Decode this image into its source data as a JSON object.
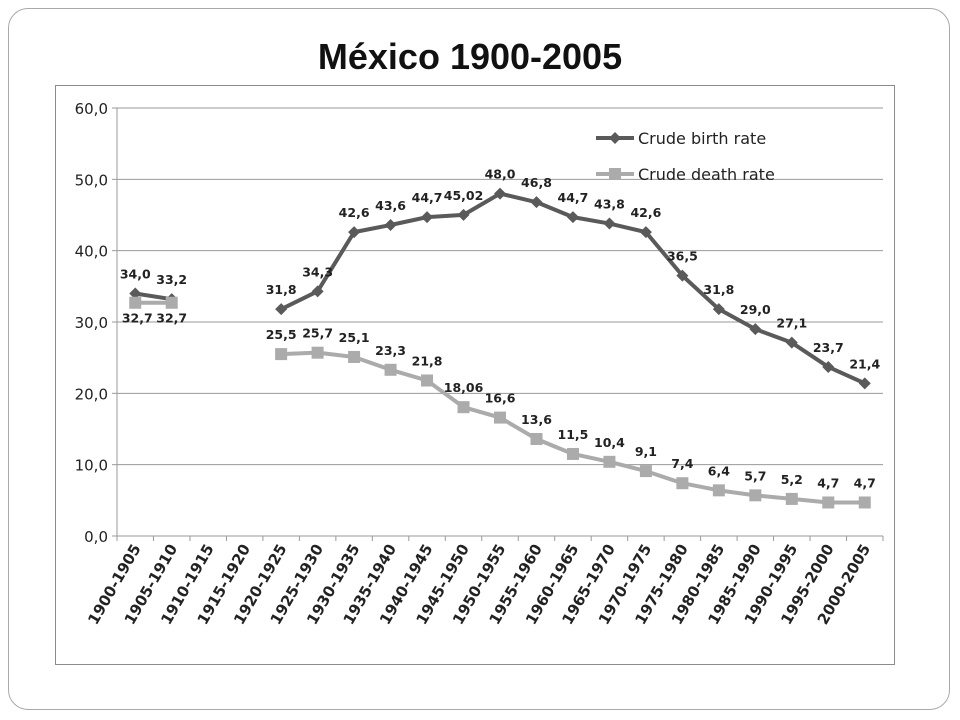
{
  "slide": {
    "title": "México 1900-2005"
  },
  "chart_data": {
    "type": "line",
    "categories": [
      "1900-1905",
      "1905-1910",
      "1910-1915",
      "1915-1920",
      "1920-1925",
      "1925-1930",
      "1930-1935",
      "1935-1940",
      "1940-1945",
      "1945-1950",
      "1950-1955",
      "1955-1960",
      "1960-1965",
      "1965-1970",
      "1970-1975",
      "1975-1980",
      "1980-1985",
      "1985-1990",
      "1990-1995",
      "1995-2000",
      "2000-2005"
    ],
    "series": [
      {
        "name": "Crude birth rate",
        "color": "#5a5a5a",
        "marker": "diamond",
        "values": [
          34.0,
          33.2,
          null,
          null,
          31.8,
          34.3,
          42.6,
          43.6,
          44.7,
          45.02,
          48.0,
          46.8,
          44.7,
          43.8,
          42.6,
          36.5,
          31.8,
          29.0,
          27.1,
          23.7,
          21.4
        ],
        "labels": [
          "34,0",
          "33,2",
          null,
          null,
          "31,8",
          "34,3",
          "42,6",
          "43,6",
          "44,7",
          "45,02",
          "48,0",
          "46,8",
          "44,7",
          "43,8",
          "42,6",
          "36,5",
          "31,8",
          "29,0",
          "27,1",
          "23,7",
          "21,4"
        ]
      },
      {
        "name": "Crude death rate",
        "color": "#ababab",
        "marker": "square",
        "values": [
          32.7,
          32.7,
          null,
          null,
          25.5,
          25.7,
          25.1,
          23.3,
          21.8,
          18.06,
          16.6,
          13.6,
          11.5,
          10.4,
          9.1,
          7.4,
          6.4,
          5.7,
          5.2,
          4.7,
          4.7
        ],
        "labels": [
          "32,7",
          "32,7",
          null,
          null,
          "25,5",
          "25,7",
          "25,1",
          "23,3",
          "21,8",
          "18,06",
          "16,6",
          "13,6",
          "11,5",
          "10,4",
          "9,1",
          "7,4",
          "6,4",
          "5,7",
          "5,2",
          "4,7",
          "4,7"
        ]
      }
    ],
    "ylim": [
      0,
      60
    ],
    "yticks": [
      0,
      10,
      20,
      30,
      40,
      50,
      60
    ],
    "ytick_labels": [
      "0,0",
      "10,0",
      "20,0",
      "30,0",
      "40,0",
      "50,0",
      "60,0"
    ],
    "grid": true,
    "legend_position": "top-right"
  }
}
